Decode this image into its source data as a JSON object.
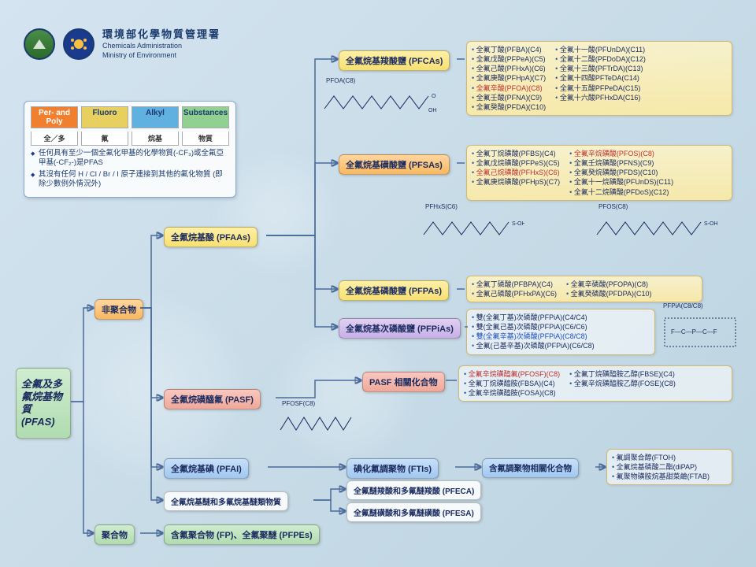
{
  "header": {
    "title_cn": "環境部化學物質管理署",
    "title_en1": "Chemicals Administration",
    "title_en2": "Ministry of Environment"
  },
  "legend": {
    "cells": [
      "Per- and Poly",
      "Fluoro",
      "Alkyl",
      "Substances"
    ],
    "cells_cn": [
      "全／多",
      "氟",
      "烷基",
      "物質"
    ],
    "notes": [
      "任何具有至少一個全氟化甲基的化學物質(-CF₃)或全氟亞甲基(-CF₂-)是PFAS",
      "其沒有任何 H / Cl / Br / I 原子連接到其他的氟化物質 (即除少數例外情況外)"
    ]
  },
  "root": {
    "label": "全氟及多氟烷基物質 (PFAS)"
  },
  "l1": {
    "nonpoly": "非聚合物",
    "poly": "聚合物"
  },
  "l2": {
    "pfaas": "全氟烷基酸 (PFAAs)",
    "pasf": "全氟烷磺醯氟 (PASF)",
    "pfai": "全氟烷基碘 (PFAI)",
    "ether": "全氟烷基醚和多氟烷基醚類物質",
    "fp": "含氟聚合物 (FP)、全氟聚醚 (PFPEs)"
  },
  "l3": {
    "pfcas": "全氟烷基羧酸鹽 (PFCAs)",
    "pfsas": "全氟烷基磺酸鹽 (PFSAs)",
    "pfpas": "全氟烷基磷酸鹽 (PFPAs)",
    "pfpias": "全氟烷基次磷酸鹽 (PFPiAs)",
    "pasf_rel": "PASF 相關化合物",
    "ftis": "碘化氟調聚物 (FTIs)",
    "ft_rel": "含氟調聚物相關化合物",
    "pfeca": "全氟醚羧酸和多氟醚羧酸 (PFECA)",
    "pfesa": "全氟醚磺酸和多氟醚磺酸 (PFESA)"
  },
  "pfcas": {
    "col1": [
      "全氟丁酸(PFBA)(C4)",
      "全氟戊酸(PFPeA)(C5)",
      "全氟己酸(PFHxA)(C6)",
      "全氟庚酸(PFHpA)(C7)",
      "全氟辛酸(PFOA)(C8)",
      "全氟壬酸(PFNA)(C9)",
      "全氟癸酸(PFDA)(C10)"
    ],
    "col2": [
      "全氟十一酸(PFUnDA)(C11)",
      "全氟十二酸(PFDoDA)(C12)",
      "全氟十三酸(PFTrDA)(C13)",
      "全氟十四酸PFTeDA(C14)",
      "全氟十五酸PFPeDA(C15)",
      "全氟十六酸PFHxDA(C16)"
    ],
    "red_idx": 4
  },
  "pfsas": {
    "col1": [
      "全氟丁烷磺酸(PFBS)(C4)",
      "全氟戊烷磺酸(PFPeS)(C5)",
      "全氟己烷磺酸(PFHxS)(C6)",
      "全氟庚烷磺酸(PFHpS)(C7)"
    ],
    "col2": [
      "全氟辛烷磺酸(PFOS)(C8)",
      "全氟壬烷磺酸(PFNS)(C9)",
      "全氟癸烷磺酸(PFDS)(C10)",
      "全氟十一烷磺酸(PFUnDS)(C11)",
      "全氟十二烷磺酸(PFDoS)(C12)"
    ],
    "red1_idx": 2,
    "red2_idx": 0
  },
  "pfpas": {
    "col1": [
      "全氟丁磷酸(PFBPA)(C4)",
      "全氟己磷酸(PFHxPA)(C6)"
    ],
    "col2": [
      "全氟辛磷酸(PFOPA)(C8)",
      "全氟癸磷酸(PFDPA)(C10)"
    ]
  },
  "pfpias": {
    "items": [
      "雙(全氟丁基)次磷酸(PFPiA)(C4/C4)",
      "雙(全氟己基)次磷酸(PFPiA)(C6/C6)",
      "雙(全氟辛基)次磷酸(PFPiA)(C8/C8)",
      "全氟(己基辛基)次磷酸(PFPiA)(C6/C8)"
    ],
    "blue_idx": 2
  },
  "pasf_rel": {
    "col1": [
      "全氟辛烷磺醯氟(PFOSF)(C8)",
      "全氟丁烷磺醯胺(FBSA)(C4)",
      "全氟辛烷磺醯胺(FOSA)(C8)"
    ],
    "col2": [
      "全氟丁烷磺醯胺乙醇(FBSE)(C4)",
      "全氟辛烷磺醯胺乙醇(FOSE)(C8)"
    ],
    "red_idx": 0
  },
  "ft_rel": {
    "items": [
      "氟調聚合醇(FTOH)",
      "全氟烷基磷酸二酯(diPAP)",
      "氟聚物磺胺烷基甜菜鹼(FTAB)"
    ]
  },
  "chem_labels": {
    "pfoa": "PFOA(C8)",
    "pfhxs": "PFHxS(C6)",
    "pfos": "PFOS(C8)",
    "pfosf": "PFOSF(C8)",
    "pfpia": "PFPiA(C8/C8)"
  },
  "colors": {
    "line": "#4a6a9a",
    "text": "#1a2a5e",
    "red": "#c03030"
  }
}
